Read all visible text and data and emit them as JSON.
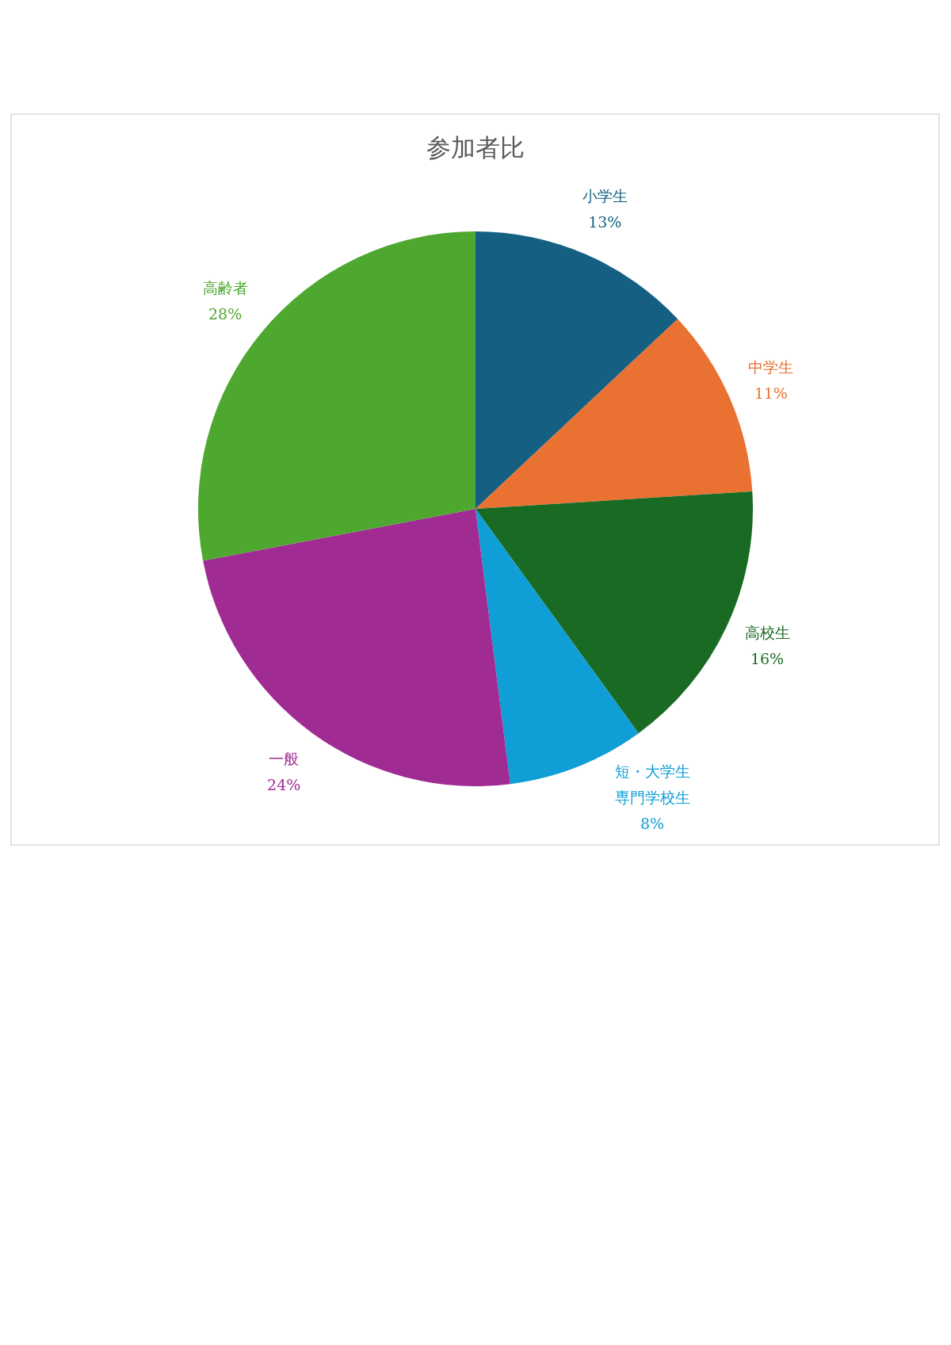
{
  "chart_data": {
    "type": "pie",
    "title": "参加者比",
    "categories": [
      "小学生",
      "中学生",
      "高校生",
      "短・大学生専門学校生",
      "一般",
      "高齢者"
    ],
    "values": [
      13,
      11,
      16,
      8,
      24,
      28
    ],
    "value_labels": [
      "13%",
      "11%",
      "16%",
      "8%",
      "24%",
      "28%"
    ],
    "colors": [
      "#156082",
      "#e97132",
      "#196b24",
      "#0f9ed5",
      "#a02b93",
      "#4ea72e"
    ]
  }
}
